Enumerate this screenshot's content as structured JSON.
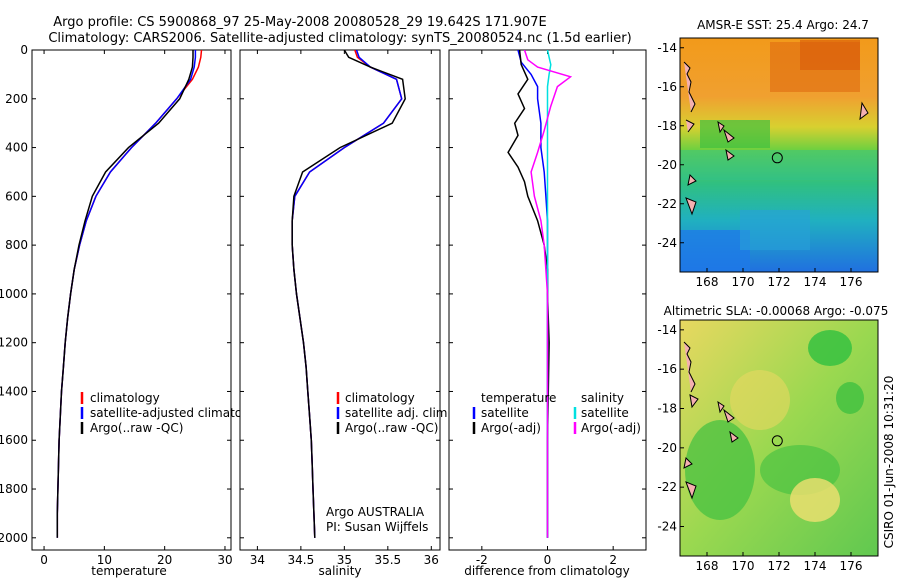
{
  "figure": {
    "title_line1": "Argo profile: CS 5900868_97 25-May-2008 20080528_29 19.642S 171.907E",
    "title_line2": "Climatology: CARS2006. Satellite-adjusted climatology: synTS_20080524.nc (1.5d earlier)",
    "side_label": "CSIRO 01-Jun-2008 10:31:20",
    "argo_label": "Argo AUSTRALIA",
    "pi_label": "PI: Susan Wijffels"
  },
  "colors": {
    "climatology": "#ff0000",
    "satellite": "#0000ff",
    "argo": "#000000",
    "sal_satellite": "#00e0e0",
    "sal_argo": "#ff00ff"
  },
  "chart_data": [
    {
      "type": "line",
      "id": "temperature",
      "xlabel": "temperature",
      "ylabel": "",
      "xlim": [
        -2,
        31
      ],
      "ylim": [
        2050,
        0
      ],
      "xticks": [
        0,
        10,
        20,
        30
      ],
      "yticks": [
        0,
        200,
        400,
        600,
        800,
        1000,
        1200,
        1400,
        1600,
        1800,
        2000
      ],
      "legend": [
        "climatology",
        "satellite-adjusted climatology",
        "Argo(..raw -QC)"
      ],
      "series": [
        {
          "name": "climatology",
          "color": "#ff0000",
          "x": [
            26.1,
            26.0,
            25.6,
            24.6,
            22.0,
            18.5,
            14.5,
            11.0,
            8.6,
            7.0,
            5.9,
            5.0,
            4.4,
            3.9,
            3.5,
            3.2,
            2.9,
            2.7,
            2.5,
            2.4,
            2.3,
            2.2,
            2.2
          ],
          "y": [
            0,
            30,
            70,
            120,
            200,
            300,
            400,
            500,
            600,
            700,
            800,
            900,
            1000,
            1100,
            1200,
            1300,
            1400,
            1500,
            1600,
            1700,
            1800,
            1900,
            2000
          ]
        },
        {
          "name": "satellite-adjusted climatology",
          "color": "#0000ff",
          "x": [
            25.1,
            25.1,
            24.9,
            24.3,
            22.0,
            18.5,
            14.5,
            11.0,
            8.6,
            7.0,
            5.9,
            5.0,
            4.4,
            3.9,
            3.5,
            3.2,
            2.9,
            2.7,
            2.5,
            2.4,
            2.3,
            2.2,
            2.2
          ],
          "y": [
            0,
            30,
            70,
            120,
            200,
            300,
            400,
            500,
            600,
            700,
            800,
            900,
            1000,
            1100,
            1200,
            1300,
            1400,
            1500,
            1600,
            1700,
            1800,
            1900,
            2000
          ]
        },
        {
          "name": "Argo(..raw -QC)",
          "color": "#000000",
          "x": [
            24.7,
            24.7,
            24.6,
            24.0,
            22.5,
            19.0,
            14.0,
            10.2,
            8.0,
            6.8,
            5.8,
            5.0,
            4.4,
            3.9,
            3.5,
            3.2,
            2.9,
            2.7,
            2.5,
            2.4,
            2.3,
            2.2,
            2.2
          ],
          "y": [
            0,
            30,
            70,
            120,
            200,
            300,
            400,
            500,
            600,
            700,
            800,
            900,
            1000,
            1100,
            1200,
            1300,
            1400,
            1500,
            1600,
            1700,
            1800,
            1900,
            2000
          ]
        }
      ]
    },
    {
      "type": "line",
      "id": "salinity",
      "xlabel": "salinity",
      "ylabel": "",
      "xlim": [
        33.8,
        36.1
      ],
      "ylim": [
        2050,
        0
      ],
      "xticks": [
        34,
        34.5,
        35,
        35.5,
        36
      ],
      "legend": [
        "climatology",
        "satellite adj. clim.",
        "Argo(..raw -QC)"
      ],
      "series": [
        {
          "name": "climatology",
          "color": "#ff0000",
          "x": [
            35.12,
            35.15,
            35.3,
            35.6,
            35.66,
            35.45,
            35.0,
            34.6,
            34.43,
            34.4,
            34.4,
            34.42,
            34.45,
            34.49,
            34.53,
            34.56,
            34.58,
            34.6,
            34.62,
            34.63,
            34.64,
            34.65,
            34.66
          ],
          "y": [
            0,
            30,
            70,
            120,
            200,
            300,
            400,
            500,
            600,
            700,
            800,
            900,
            1000,
            1100,
            1200,
            1300,
            1400,
            1500,
            1600,
            1700,
            1800,
            1900,
            2000
          ]
        },
        {
          "name": "satellite adj. clim.",
          "color": "#0000ff",
          "x": [
            35.14,
            35.17,
            35.3,
            35.6,
            35.66,
            35.45,
            35.0,
            34.6,
            34.43,
            34.4,
            34.4,
            34.42,
            34.45,
            34.49,
            34.53,
            34.56,
            34.58,
            34.6,
            34.62,
            34.63,
            34.64,
            34.65,
            34.66
          ],
          "y": [
            0,
            30,
            70,
            120,
            200,
            300,
            400,
            500,
            600,
            700,
            800,
            900,
            1000,
            1100,
            1200,
            1300,
            1400,
            1500,
            1600,
            1700,
            1800,
            1900,
            2000
          ]
        },
        {
          "name": "Argo(..raw -QC)",
          "color": "#000000",
          "x": [
            35.0,
            35.05,
            35.3,
            35.67,
            35.7,
            35.55,
            34.95,
            34.52,
            34.42,
            34.4,
            34.4,
            34.42,
            34.45,
            34.49,
            34.53,
            34.56,
            34.58,
            34.6,
            34.62,
            34.63,
            34.64,
            34.65,
            34.66
          ],
          "y": [
            0,
            30,
            70,
            120,
            200,
            300,
            400,
            500,
            600,
            700,
            800,
            900,
            1000,
            1100,
            1200,
            1300,
            1400,
            1500,
            1600,
            1700,
            1800,
            1900,
            2000
          ]
        }
      ]
    },
    {
      "type": "line",
      "id": "difference",
      "xlabel": "difference from climatology",
      "ylabel": "",
      "xlim": [
        -3,
        3
      ],
      "ylim": [
        2050,
        0
      ],
      "xticks": [
        -2,
        0,
        2
      ],
      "legend_temperature": [
        "temperature",
        "satellite",
        "Argo(-adj)"
      ],
      "legend_salinity": [
        "salinity",
        "satellite",
        "Argo(-adj)"
      ],
      "series": [
        {
          "name": "temperature satellite",
          "color": "#0000ff",
          "x": [
            -0.9,
            -0.8,
            -0.5,
            -0.3,
            -0.3,
            -0.2,
            -0.2,
            -0.1,
            -0.05,
            0.0,
            0.0,
            0.0,
            0.0,
            0.0
          ],
          "y": [
            0,
            50,
            100,
            150,
            200,
            300,
            400,
            500,
            600,
            700,
            800,
            1000,
            1500,
            2000
          ]
        },
        {
          "name": "temperature Argo(-adj)",
          "color": "#000000",
          "x": [
            -0.85,
            -0.8,
            -0.6,
            -0.9,
            -0.7,
            -1.0,
            -0.9,
            -1.2,
            -0.9,
            -0.7,
            -0.6,
            -0.3,
            -0.1,
            0.0,
            0.0,
            0.05,
            0.0,
            0.0
          ],
          "y": [
            0,
            60,
            120,
            180,
            240,
            300,
            350,
            420,
            480,
            540,
            600,
            700,
            800,
            900,
            1000,
            1200,
            1600,
            2000
          ]
        },
        {
          "name": "salinity satellite",
          "color": "#00e0e0",
          "x": [
            0.0,
            0.05,
            0.1,
            0.05,
            0.0,
            0.0,
            0.0,
            0.0,
            0.0,
            0.0
          ],
          "y": [
            0,
            30,
            60,
            100,
            150,
            300,
            600,
            1000,
            1500,
            2000
          ]
        },
        {
          "name": "salinity Argo(-adj)",
          "color": "#ff00ff",
          "x": [
            -0.7,
            -0.6,
            -0.3,
            0.7,
            0.3,
            0.1,
            -0.1,
            -0.3,
            -0.5,
            -0.4,
            -0.2,
            -0.1,
            0.0,
            0.0
          ],
          "y": [
            0,
            40,
            70,
            110,
            150,
            230,
            330,
            420,
            500,
            600,
            700,
            800,
            1000,
            2000
          ]
        }
      ]
    },
    {
      "type": "heatmap",
      "id": "sst_map",
      "title": "AMSR-E SST: 25.4  Argo: 24.7",
      "xlim": [
        166.5,
        177.5
      ],
      "ylim": [
        -25.5,
        -13.5
      ],
      "xticks": [
        168,
        170,
        172,
        174,
        176
      ],
      "yticks": [
        -14,
        -16,
        -18,
        -20,
        -22,
        -24
      ],
      "xtick_labels": [
        "168",
        "170",
        "172",
        "174",
        "176"
      ],
      "ytick_labels": [
        "-14",
        "-16",
        "-18",
        "-20",
        "-22",
        "-24"
      ],
      "marker": {
        "lon": 171.907,
        "lat": -19.642
      }
    },
    {
      "type": "heatmap",
      "id": "sla_map",
      "title": "Altimetric SLA: -0.00068  Argo: -0.075",
      "xlim": [
        166.5,
        177.5
      ],
      "ylim": [
        -25.5,
        -13.5
      ],
      "xticks": [
        168,
        170,
        172,
        174,
        176
      ],
      "yticks": [
        -14,
        -16,
        -18,
        -20,
        -22,
        -24
      ],
      "xtick_labels": [
        "168",
        "170",
        "172",
        "174",
        "176"
      ],
      "ytick_labels": [
        "-14",
        "-16",
        "-18",
        "-20",
        "-22",
        "-24"
      ],
      "marker": {
        "lon": 171.907,
        "lat": -19.642
      }
    }
  ]
}
